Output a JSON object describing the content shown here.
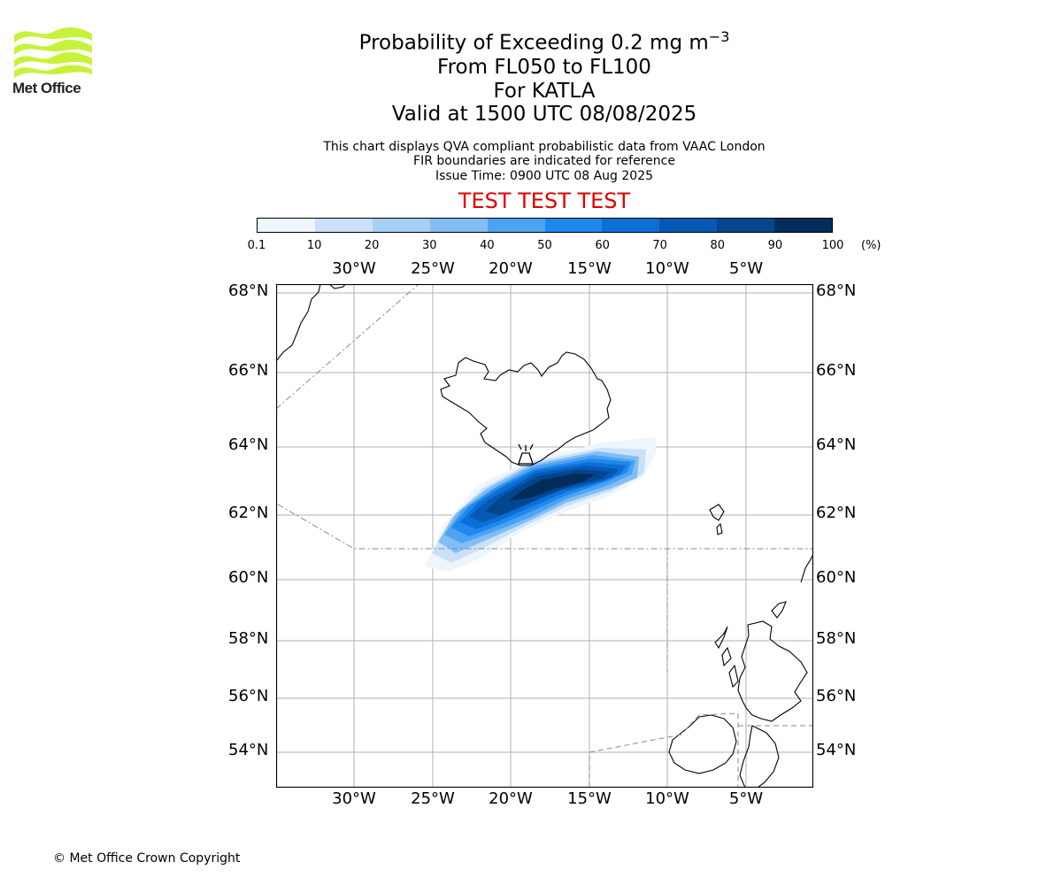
{
  "logo": {
    "text": "Met Office",
    "colors": {
      "waves": "#c6f33a",
      "text": "#222222"
    }
  },
  "header": {
    "title_main": "Probability of Exceeding 0.2 mg m",
    "title_sup": "−3",
    "levels": "From FL050 to FL100",
    "volcano": "For KATLA",
    "valid": "Valid at 1500 UTC 08/08/2025"
  },
  "info": {
    "line1": "This chart displays QVA compliant probabilistic data from VAAC London",
    "line2": "FIR boundaries are indicated for reference",
    "line3": "Issue Time: 0900 UTC 08 Aug 2025"
  },
  "banner": {
    "text": "TEST TEST TEST",
    "color": "#e00000"
  },
  "colorbar": {
    "ticks": [
      "0.1",
      "10",
      "20",
      "30",
      "40",
      "50",
      "60",
      "70",
      "80",
      "90",
      "100"
    ],
    "unit": "(%)",
    "colors": [
      "#eef5fd",
      "#c9e1f8",
      "#a6cff5",
      "#82bdf5",
      "#4ca3f2",
      "#1e88ec",
      "#0b6fd6",
      "#0559b4",
      "#03468e",
      "#022d5a"
    ]
  },
  "map": {
    "lat_labels": [
      "68°N",
      "66°N",
      "64°N",
      "62°N",
      "60°N",
      "58°N",
      "56°N",
      "54°N"
    ],
    "lon_labels": [
      "30°W",
      "25°W",
      "20°W",
      "15°W",
      "10°W",
      "5°W"
    ],
    "volcano_marker": "volcano-icon"
  },
  "footer": {
    "copyright": "© Met Office Crown Copyright"
  }
}
